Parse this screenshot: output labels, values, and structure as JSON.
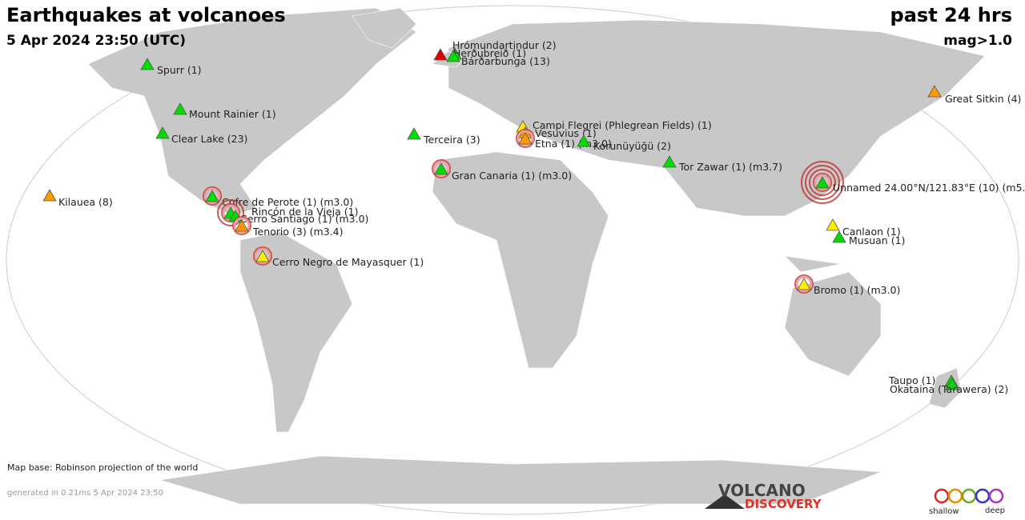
{
  "header": {
    "title": "Earthquakes at volcanoes",
    "date": "5 Apr 2024 23:50 (UTC)",
    "period": "past 24 hrs",
    "magnitude": "mag>1.0"
  },
  "volcanoes": [
    {
      "label": "Hrómundartindur (2)",
      "color": "#e00000"
    },
    {
      "label": "Herðubreið (1)",
      "color": "#00dd00"
    },
    {
      "label": "Bárðarbunga (13)",
      "color": "#00dd00"
    },
    {
      "label": "Spurr (1)",
      "color": "#00dd00"
    },
    {
      "label": "Mount Rainier (1)",
      "color": "#00dd00"
    },
    {
      "label": "Clear Lake (23)",
      "color": "#00dd00"
    },
    {
      "label": "Terceira (3)",
      "color": "#00dd00"
    },
    {
      "label": "Campi Flegrei (Phlegrean Fields) (1)",
      "color": "#ffee00"
    },
    {
      "label": "Vesuvius (1)",
      "color": "#ff9900"
    },
    {
      "label": "Etna (1) (m3.0)",
      "color": "#ff9900"
    },
    {
      "label": "Korunüyüğü (2)",
      "color": "#00dd00"
    },
    {
      "label": "Great Sitkin (4)",
      "color": "#ff9900"
    },
    {
      "label": "Gran Canaria (1) (m3.0)",
      "color": "#00dd00"
    },
    {
      "label": "Tor Zawar (1) (m3.7)",
      "color": "#00dd00"
    },
    {
      "label": "Unnamed 24.00°N/121.83°E (10) (m5.",
      "color": "#00dd00"
    },
    {
      "label": "Kilauea (8)",
      "color": "#ff9900"
    },
    {
      "label": "Cofre de Perote (1) (m3.0)",
      "color": "#00dd00"
    },
    {
      "label": "Rincón de la Vieja (1)",
      "color": "#00dd00"
    },
    {
      "label": "Cerro Santiago (1) (m3.0)",
      "color": "#00dd00"
    },
    {
      "label": "Tenorio (3) (m3.4)",
      "color": "#ff9900"
    },
    {
      "label": "Cerro Negro de Mayasquer (1)",
      "color": "#ffee00"
    },
    {
      "label": "Canlaon (1)",
      "color": "#ffee00"
    },
    {
      "label": "Musuan (1)",
      "color": "#00dd00"
    },
    {
      "label": "Bromo (1) (m3.0)",
      "color": "#ffee00"
    },
    {
      "label": "Taupo (1)",
      "color": "#00dd00"
    },
    {
      "label": "Okataina (Tarawera) (2)",
      "color": "#00dd00"
    }
  ],
  "footer": {
    "map_base": "Map base: Robinson projection of the world",
    "generated": "generated in 0.21ms  5 Apr 2024 23:50",
    "logo_top": "VOLCANO",
    "logo_bottom": "DISCOVERY",
    "legend_shallow": "shallow",
    "legend_deep": "deep"
  }
}
